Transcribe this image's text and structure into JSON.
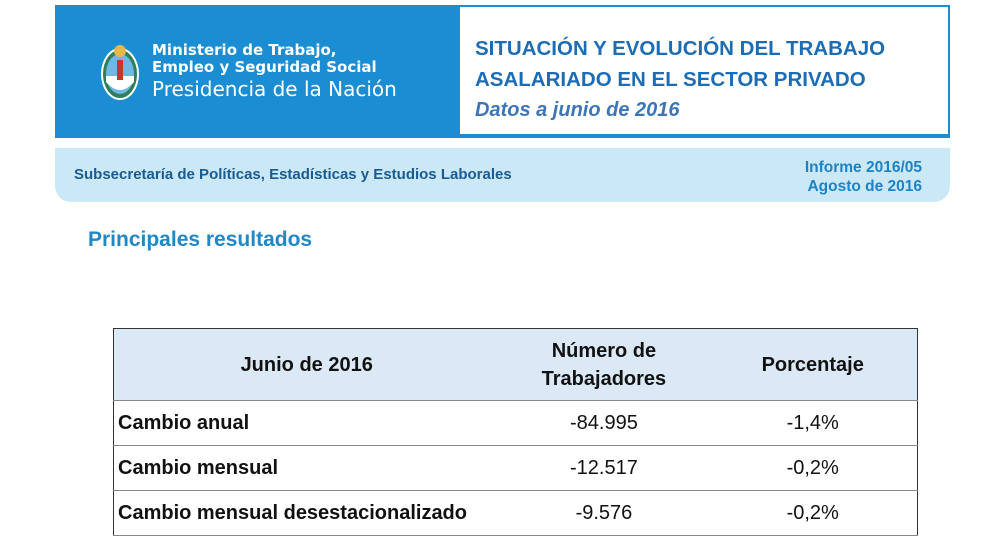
{
  "header": {
    "ministry_line1": "Ministerio de Trabajo,",
    "ministry_line2": "Empleo y Seguridad Social",
    "ministry_line3": "Presidencia de la Nación",
    "title_line1": "SITUACIÓN Y EVOLUCIÓN DEL TRABAJO",
    "title_line2": "ASALARIADO EN EL SECTOR PRIVADO",
    "subtitle": "Datos a junio de 2016",
    "colors": {
      "banner": "#1b8dd2",
      "title": "#1c6db5"
    }
  },
  "subheader": {
    "office": "Subsecretaría de Políticas, Estadísticas y Estudios Laborales",
    "report": "Informe 2016/05",
    "date": "Agosto de 2016"
  },
  "section_title": "Principales resultados",
  "table": {
    "headers": [
      "Junio de 2016",
      "Número de Trabajadores",
      "Porcentaje"
    ],
    "rows": [
      [
        "Cambio anual",
        "-84.995",
        "-1,4%"
      ],
      [
        "Cambio mensual",
        "-12.517",
        "-0,2%"
      ],
      [
        "Cambio mensual desestacionalizado",
        "-9.576",
        "-0,2%"
      ]
    ]
  }
}
